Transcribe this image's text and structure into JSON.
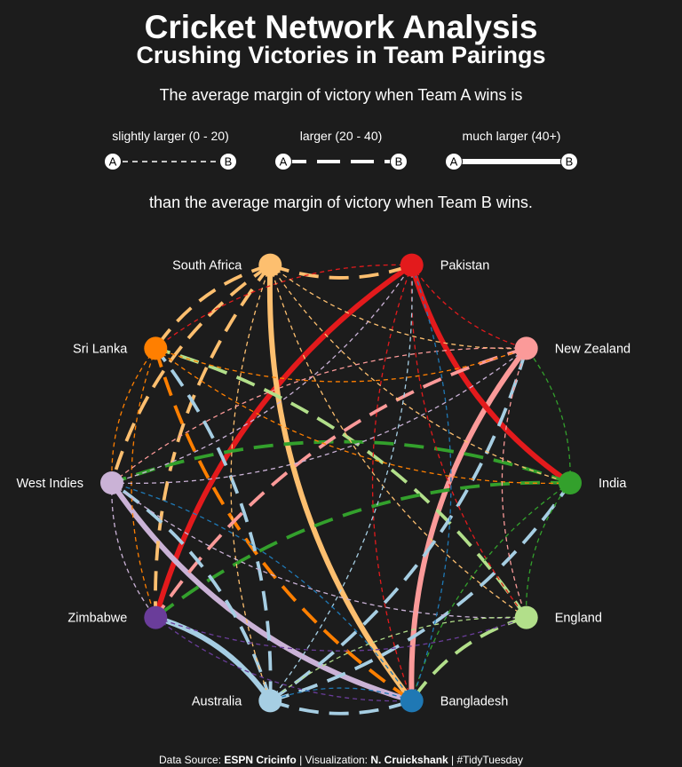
{
  "header": {
    "title": "Cricket Network Analysis",
    "subtitle": "Crushing Victories in Team Pairings",
    "intro": "The average margin of victory when Team A wins is",
    "outro": "than the average margin of victory when Team B wins."
  },
  "legend": {
    "node_a": "A",
    "node_b": "B",
    "items": [
      {
        "label": "slightly larger (0 - 20)",
        "style": "thin"
      },
      {
        "label": "larger (20 - 40)",
        "style": "medium"
      },
      {
        "label": "much larger (40+)",
        "style": "thick"
      }
    ]
  },
  "teams": [
    {
      "name": "Pakistan",
      "color": "#e31a1c"
    },
    {
      "name": "New Zealand",
      "color": "#fb9a99"
    },
    {
      "name": "India",
      "color": "#33a02c"
    },
    {
      "name": "England",
      "color": "#b2df8a"
    },
    {
      "name": "Bangladesh",
      "color": "#1f78b4"
    },
    {
      "name": "Australia",
      "color": "#a6cee3"
    },
    {
      "name": "Zimbabwe",
      "color": "#6a3d9a"
    },
    {
      "name": "West Indies",
      "color": "#cab2d6"
    },
    {
      "name": "Sri Lanka",
      "color": "#ff7f00"
    },
    {
      "name": "South Africa",
      "color": "#fdbf6f"
    }
  ],
  "edges": [
    {
      "winner": "Pakistan",
      "loser": "Zimbabwe",
      "level": "thick"
    },
    {
      "winner": "South Africa",
      "loser": "Bangladesh",
      "level": "thick"
    },
    {
      "winner": "West Indies",
      "loser": "Bangladesh",
      "level": "thick"
    },
    {
      "winner": "New Zealand",
      "loser": "Bangladesh",
      "level": "thick"
    },
    {
      "winner": "Australia",
      "loser": "Zimbabwe",
      "level": "thick"
    },
    {
      "winner": "Pakistan",
      "loser": "India",
      "level": "thick"
    },
    {
      "winner": "South Africa",
      "loser": "Pakistan",
      "level": "medium"
    },
    {
      "winner": "South Africa",
      "loser": "Sri Lanka",
      "level": "medium"
    },
    {
      "winner": "South Africa",
      "loser": "West Indies",
      "level": "medium"
    },
    {
      "winner": "South Africa",
      "loser": "Zimbabwe",
      "level": "medium"
    },
    {
      "winner": "Sri Lanka",
      "loser": "Bangladesh",
      "level": "medium"
    },
    {
      "winner": "England",
      "loser": "Sri Lanka",
      "level": "medium"
    },
    {
      "winner": "England",
      "loser": "Bangladesh",
      "level": "medium"
    },
    {
      "winner": "India",
      "loser": "Zimbabwe",
      "level": "medium"
    },
    {
      "winner": "India",
      "loser": "West Indies",
      "level": "medium"
    },
    {
      "winner": "New Zealand",
      "loser": "Zimbabwe",
      "level": "medium"
    },
    {
      "winner": "Australia",
      "loser": "West Indies",
      "level": "medium"
    },
    {
      "winner": "Australia",
      "loser": "Sri Lanka",
      "level": "medium"
    },
    {
      "winner": "Australia",
      "loser": "India",
      "level": "medium"
    },
    {
      "winner": "Australia",
      "loser": "New Zealand",
      "level": "medium"
    },
    {
      "winner": "Australia",
      "loser": "Bangladesh",
      "level": "medium"
    },
    {
      "winner": "Pakistan",
      "loser": "Bangladesh",
      "level": "thin"
    },
    {
      "winner": "Pakistan",
      "loser": "New Zealand",
      "level": "thin"
    },
    {
      "winner": "Pakistan",
      "loser": "England",
      "level": "thin"
    },
    {
      "winner": "Pakistan",
      "loser": "Sri Lanka",
      "level": "thin"
    },
    {
      "winner": "South Africa",
      "loser": "New Zealand",
      "level": "thin"
    },
    {
      "winner": "South Africa",
      "loser": "India",
      "level": "thin"
    },
    {
      "winner": "South Africa",
      "loser": "England",
      "level": "thin"
    },
    {
      "winner": "South Africa",
      "loser": "Australia",
      "level": "thin"
    },
    {
      "winner": "Sri Lanka",
      "loser": "New Zealand",
      "level": "thin"
    },
    {
      "winner": "Sri Lanka",
      "loser": "India",
      "level": "thin"
    },
    {
      "winner": "Sri Lanka",
      "loser": "West Indies",
      "level": "thin"
    },
    {
      "winner": "Sri Lanka",
      "loser": "Zimbabwe",
      "level": "thin"
    },
    {
      "winner": "West Indies",
      "loser": "Pakistan",
      "level": "thin"
    },
    {
      "winner": "West Indies",
      "loser": "New Zealand",
      "level": "thin"
    },
    {
      "winner": "West Indies",
      "loser": "England",
      "level": "thin"
    },
    {
      "winner": "West Indies",
      "loser": "Zimbabwe",
      "level": "thin"
    },
    {
      "winner": "Zimbabwe",
      "loser": "England",
      "level": "thin"
    },
    {
      "winner": "Zimbabwe",
      "loser": "Bangladesh",
      "level": "thin"
    },
    {
      "winner": "New Zealand",
      "loser": "England",
      "level": "thin"
    },
    {
      "winner": "New Zealand",
      "loser": "West Indies",
      "level": "thin"
    },
    {
      "winner": "India",
      "loser": "England",
      "level": "thin"
    },
    {
      "winner": "India",
      "loser": "New Zealand",
      "level": "thin"
    },
    {
      "winner": "India",
      "loser": "Bangladesh",
      "level": "thin"
    },
    {
      "winner": "England",
      "loser": "Australia",
      "level": "thin"
    },
    {
      "winner": "Australia",
      "loser": "Pakistan",
      "level": "thin"
    },
    {
      "winner": "Bangladesh",
      "loser": "Australia",
      "level": "thin"
    },
    {
      "winner": "Bangladesh",
      "loser": "West Indies",
      "level": "thin"
    },
    {
      "winner": "Bangladesh",
      "loser": "Pakistan",
      "level": "thin"
    }
  ],
  "caption": {
    "source_prefix": "Data Source: ",
    "source": "ESPN Cricinfo",
    "viz_prefix": " | Visualization: ",
    "author": "N. Cruickshank",
    "suffix": " | #TidyTuesday"
  }
}
